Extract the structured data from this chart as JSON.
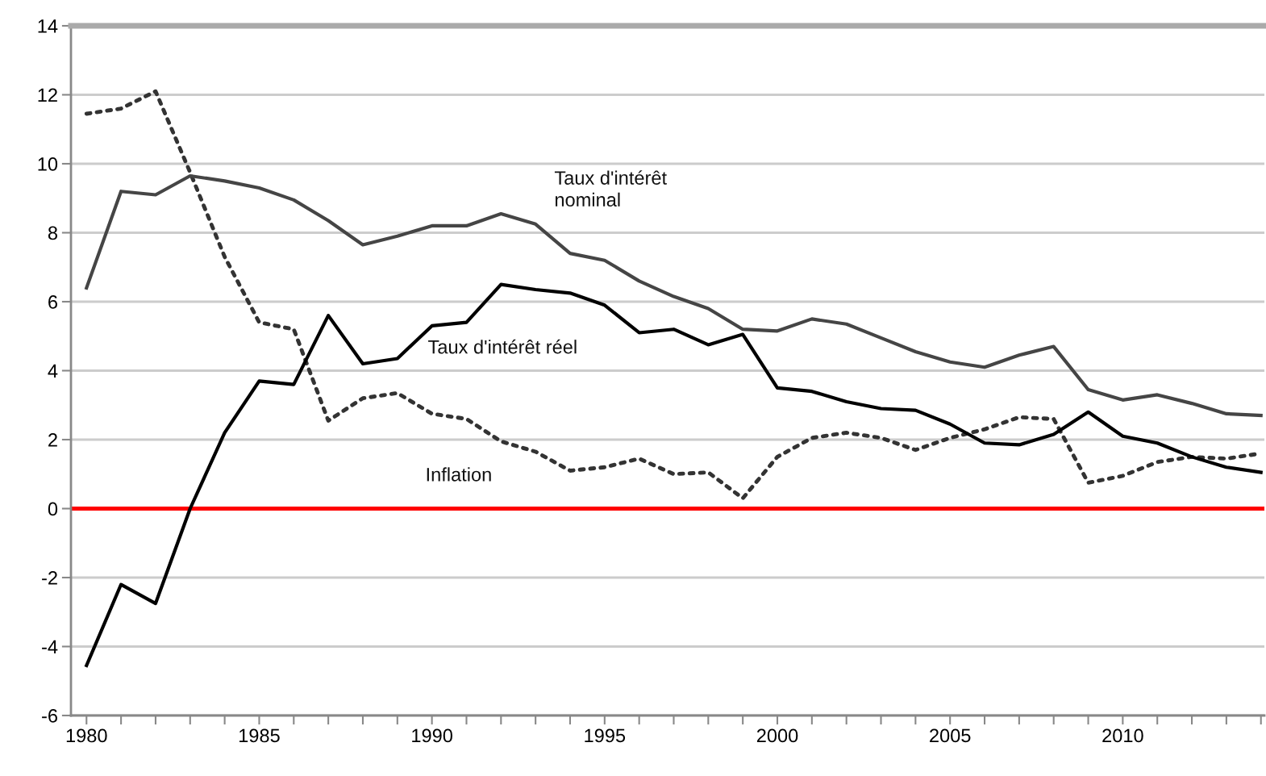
{
  "chart_data": {
    "type": "line",
    "x": [
      1980,
      1981,
      1982,
      1983,
      1984,
      1985,
      1986,
      1987,
      1988,
      1989,
      1990,
      1991,
      1992,
      1993,
      1994,
      1995,
      1996,
      1997,
      1998,
      1999,
      2000,
      2001,
      2002,
      2003,
      2004,
      2005,
      2006,
      2007,
      2008,
      2009,
      2010,
      2011,
      2012,
      2013,
      2014
    ],
    "series": [
      {
        "name": "Taux d'intérêt\nnominal",
        "color": "#454545",
        "line_style": "solid",
        "values": [
          6.4,
          9.2,
          9.1,
          9.65,
          9.5,
          9.3,
          8.95,
          8.35,
          7.65,
          7.9,
          8.2,
          8.2,
          8.55,
          8.25,
          7.4,
          7.2,
          6.6,
          6.15,
          5.8,
          5.2,
          5.15,
          5.5,
          5.35,
          4.95,
          4.55,
          4.25,
          4.1,
          4.45,
          4.7,
          3.45,
          3.15,
          3.3,
          3.05,
          2.75,
          2.7
        ]
      },
      {
        "name": "Taux d'intérêt réel",
        "color": "#000000",
        "line_style": "solid",
        "values": [
          -4.55,
          -2.2,
          -2.75,
          0,
          2.2,
          3.7,
          3.6,
          5.6,
          4.2,
          4.35,
          5.3,
          5.4,
          6.5,
          6.35,
          6.25,
          5.9,
          5.1,
          5.2,
          4.75,
          5.05,
          3.5,
          3.4,
          3.1,
          2.9,
          2.85,
          2.45,
          1.9,
          1.85,
          2.15,
          2.8,
          2.1,
          1.9,
          1.5,
          1.2,
          1.05
        ]
      },
      {
        "name": "Inflation",
        "color": "#333333",
        "line_style": "dotted",
        "values": [
          11.45,
          11.6,
          12.1,
          9.75,
          7.3,
          5.4,
          5.2,
          2.55,
          3.2,
          3.35,
          2.75,
          2.6,
          1.95,
          1.65,
          1.1,
          1.2,
          1.45,
          1.0,
          1.05,
          0.3,
          1.5,
          2.05,
          2.2,
          2.05,
          1.7,
          2.05,
          2.3,
          2.65,
          2.6,
          0.75,
          0.95,
          1.35,
          1.5,
          1.45,
          1.6
        ]
      }
    ],
    "xlim": [
      1979.55,
      2014.1
    ],
    "xticks": [
      1980,
      {
        "value": 1981,
        "label": null
      },
      {
        "value": 1982,
        "label": null
      },
      {
        "value": 1983,
        "label": null
      },
      {
        "value": 1984,
        "label": null
      },
      1985,
      {
        "value": 1986,
        "label": null
      },
      {
        "value": 1987,
        "label": null
      },
      {
        "value": 1988,
        "label": null
      },
      {
        "value": 1989,
        "label": null
      },
      1990,
      {
        "value": 1991,
        "label": null
      },
      {
        "value": 1992,
        "label": null
      },
      {
        "value": 1993,
        "label": null
      },
      {
        "value": 1994,
        "label": null
      },
      1995,
      {
        "value": 1996,
        "label": null
      },
      {
        "value": 1997,
        "label": null
      },
      {
        "value": 1998,
        "label": null
      },
      {
        "value": 1999,
        "label": null
      },
      2000,
      {
        "value": 2001,
        "label": null
      },
      {
        "value": 2002,
        "label": null
      },
      {
        "value": 2003,
        "label": null
      },
      {
        "value": 2004,
        "label": null
      },
      2005,
      {
        "value": 2006,
        "label": null
      },
      {
        "value": 2007,
        "label": null
      },
      {
        "value": 2008,
        "label": null
      },
      {
        "value": 2009,
        "label": null
      },
      2010,
      {
        "value": 2011,
        "label": null
      },
      {
        "value": 2012,
        "label": null
      },
      {
        "value": 2013,
        "label": null
      },
      {
        "value": 2014,
        "label": null
      }
    ],
    "ylim": [
      -6,
      14
    ],
    "yticks": [
      -6,
      -4,
      -2,
      0,
      2,
      4,
      6,
      8,
      10,
      12,
      14
    ],
    "ref_lines": [
      {
        "axis": "y",
        "value": 0,
        "color": "#ff0000",
        "line_style": "solid"
      }
    ],
    "grid": "y",
    "legend": false,
    "marker": "none"
  }
}
